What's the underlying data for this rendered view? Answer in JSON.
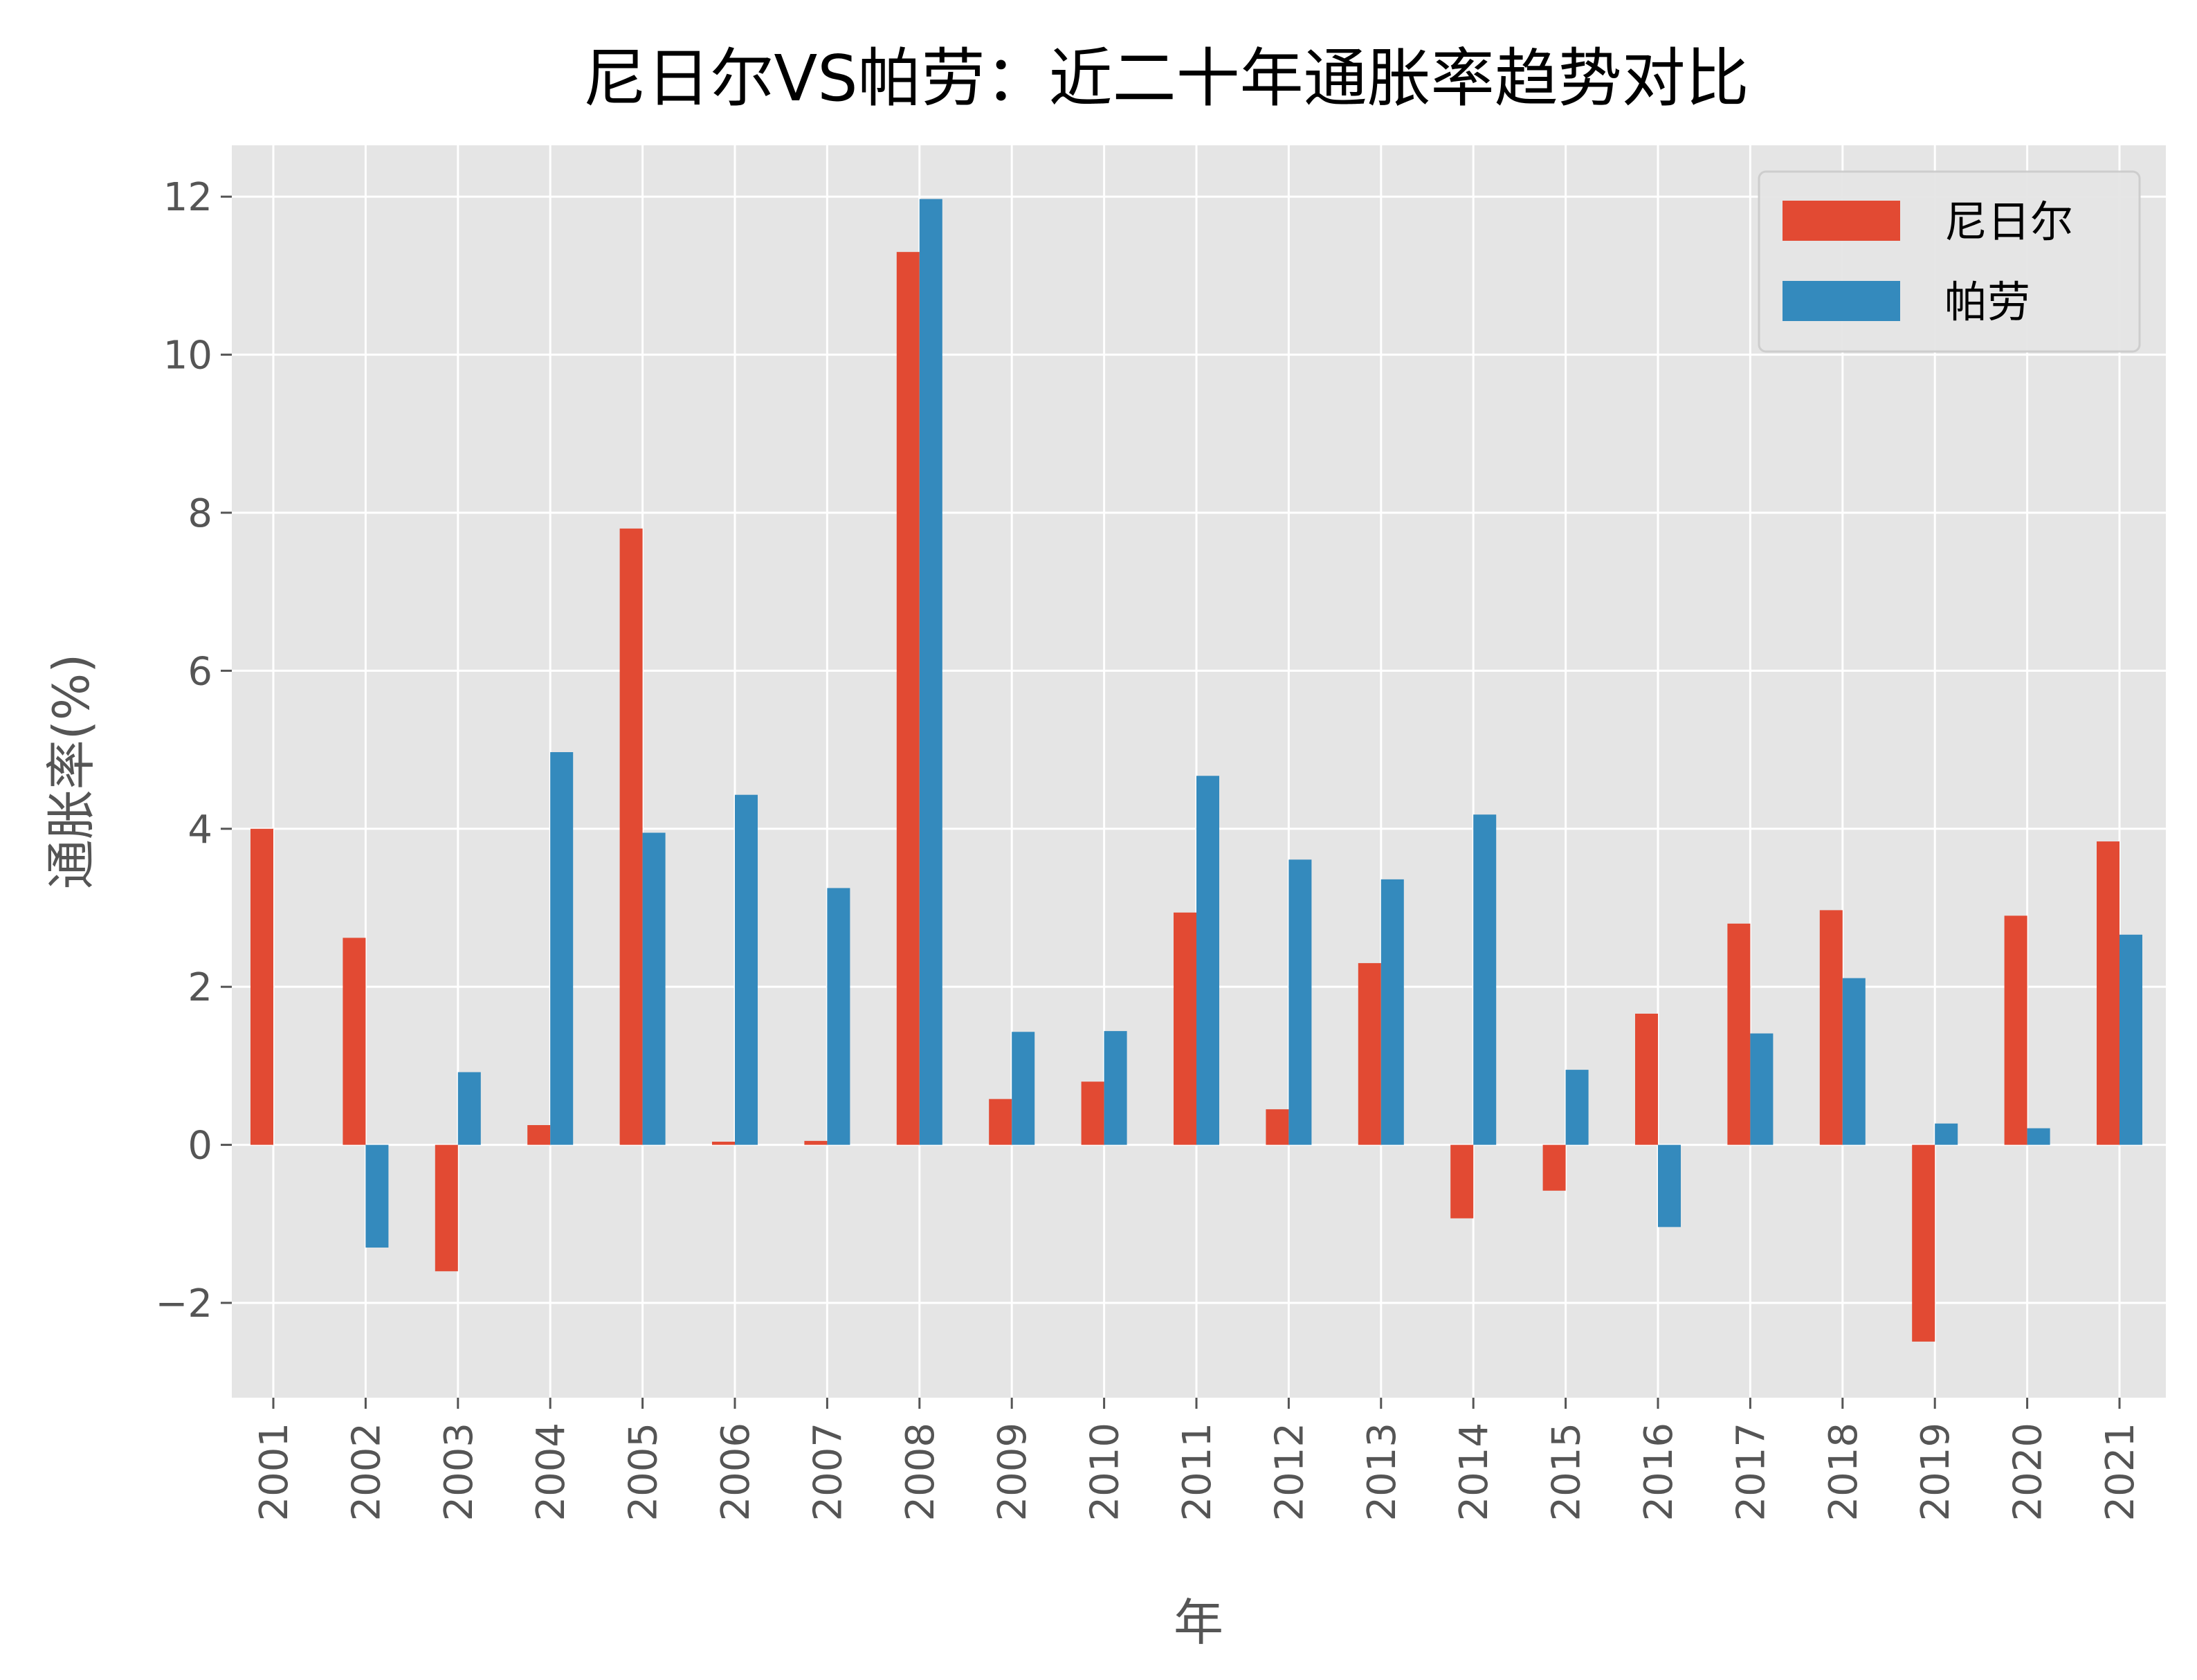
{
  "chart_data": {
    "type": "bar",
    "title": "尼日尔VS帕劳：近二十年通胀率趋势对比",
    "xlabel": "年",
    "ylabel": "通胀率(%)",
    "categories": [
      "2001",
      "2002",
      "2003",
      "2004",
      "2005",
      "2006",
      "2007",
      "2008",
      "2009",
      "2010",
      "2011",
      "2012",
      "2013",
      "2014",
      "2015",
      "2016",
      "2017",
      "2018",
      "2019",
      "2020",
      "2021"
    ],
    "series": [
      {
        "name": "尼日尔",
        "color": "#E24A33",
        "values": [
          4.0,
          2.62,
          -1.6,
          0.25,
          7.8,
          0.04,
          0.05,
          11.3,
          0.58,
          0.8,
          2.94,
          0.45,
          2.3,
          -0.93,
          -0.58,
          1.66,
          2.8,
          2.97,
          -2.49,
          2.9,
          3.84
        ]
      },
      {
        "name": "帕劳",
        "color": "#348ABD",
        "values": [
          0.0,
          -1.3,
          0.92,
          4.97,
          3.95,
          4.43,
          3.25,
          11.97,
          1.43,
          1.44,
          4.67,
          3.61,
          3.36,
          4.18,
          0.95,
          -1.04,
          1.41,
          2.11,
          0.27,
          0.21,
          2.66
        ]
      }
    ],
    "ylim": [
      -3.2,
      12.65
    ],
    "yticks": [
      -2,
      0,
      2,
      4,
      6,
      8,
      10,
      12
    ],
    "ytick_labels": [
      "−2",
      "0",
      "2",
      "4",
      "6",
      "8",
      "10",
      "12"
    ],
    "grid": true,
    "legend_position": "top-right",
    "background": "#E5E5E5"
  }
}
